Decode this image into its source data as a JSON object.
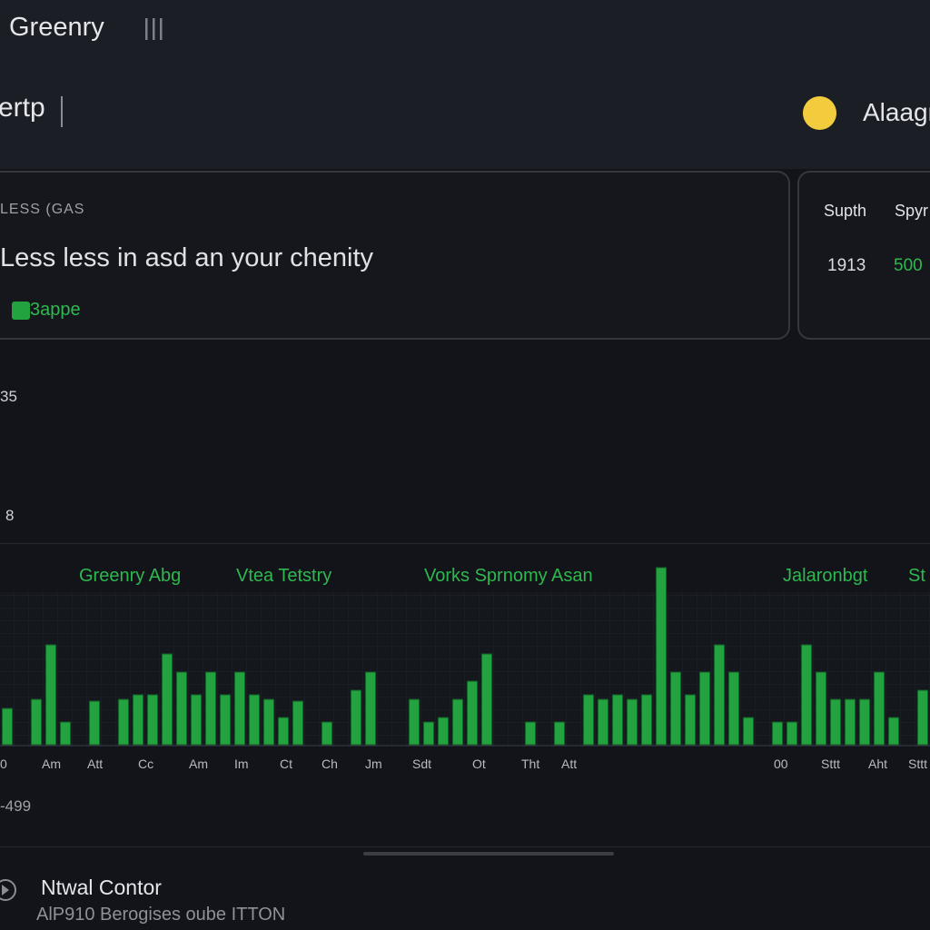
{
  "top_bar": {
    "title": "Greenry"
  },
  "header": {
    "title": "ertp",
    "user": "Alaagr"
  },
  "summary_card": {
    "eyebrow": "LESS (GAS",
    "headline": "Less less in asd an your chenity",
    "tag": "3appe"
  },
  "stats_card": {
    "columns": [
      {
        "label": "Supth",
        "value": "1913"
      },
      {
        "label": "Spyr",
        "value": "500"
      }
    ]
  },
  "side_labels": [
    "35",
    "8"
  ],
  "chart_data": {
    "type": "bar",
    "series_labels": [
      "Greenry Abg",
      "Vtea Tetstry",
      "Vorks Sprnomy Asan",
      "Jalaronbgt",
      "St"
    ],
    "x_labels": [
      "0",
      "Am",
      "Att",
      "Cc",
      "Am",
      "Im",
      "Ct",
      "Ch",
      "Jm",
      "Sdt",
      "Ot",
      "Tht",
      "Att",
      "00",
      "Sttt",
      "Aht",
      "Sttt"
    ],
    "values": [
      40,
      0,
      50,
      110,
      25,
      0,
      48,
      0,
      50,
      55,
      55,
      100,
      80,
      55,
      80,
      55,
      80,
      55,
      50,
      30,
      48,
      0,
      25,
      0,
      60,
      80,
      0,
      0,
      50,
      25,
      30,
      50,
      70,
      100,
      0,
      0,
      25,
      0,
      25,
      0,
      55,
      50,
      55,
      50,
      55,
      195,
      80,
      55,
      80,
      110,
      80,
      30,
      0,
      25,
      25,
      110,
      80,
      50,
      50,
      50,
      80,
      30,
      0,
      60
    ],
    "ylim": [
      0,
      200
    ],
    "color": "#22a33f"
  },
  "footer_value": "-499",
  "footer": {
    "title": "Ntwal Contor",
    "subtitle": "AlP910 Berogises oube ITTON"
  }
}
